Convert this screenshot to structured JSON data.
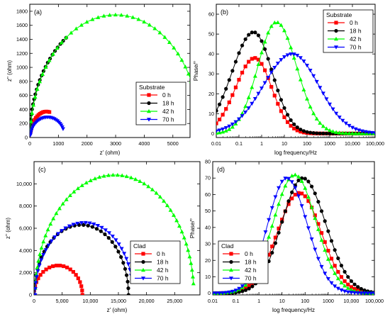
{
  "chart_data": [
    {
      "id": "a",
      "type": "scatter",
      "panel_label": "(a)",
      "xlabel": "z' (ohm)",
      "ylabel": "z'' (ohm)",
      "xscale": "linear",
      "xlim": [
        0,
        5600
      ],
      "ylim": [
        0,
        1900
      ],
      "xticks": [
        0,
        1000,
        2000,
        3000,
        4000,
        5000
      ],
      "xtick_labels": [
        "0",
        "1000",
        "2000",
        "3000",
        "4000",
        "5000"
      ],
      "yticks": [
        0,
        200,
        400,
        600,
        800,
        1000,
        1200,
        1400,
        1600,
        1800
      ],
      "ytick_labels": [
        "0",
        "200",
        "400",
        "600",
        "800",
        "1000",
        "1200",
        "1400",
        "1600",
        "1800"
      ],
      "legend_title": "Substrate",
      "legend_position": "center-right",
      "series": [
        {
          "name": "0 h",
          "color": "#ff0000",
          "marker": "square",
          "shape": "arc",
          "center": 580,
          "rx": 560,
          "ry": 370,
          "t_start": 0.08,
          "t_end": 0.56,
          "count": 16
        },
        {
          "name": "18 h",
          "color": "#000000",
          "marker": "circle",
          "shape": "arc",
          "center": 2900,
          "rx": 2900,
          "ry": 1720,
          "t_start": 0.02,
          "t_end": 0.31,
          "count": 22
        },
        {
          "name": "42 h",
          "color": "#00ff00",
          "marker": "triangle-up",
          "shape": "arc",
          "center": 3000,
          "rx": 2980,
          "ry": 1750,
          "t_start": 0.02,
          "t_end": 0.87,
          "count": 40
        },
        {
          "name": "70 h",
          "color": "#0000ff",
          "marker": "triangle-down",
          "shape": "arc",
          "center": 620,
          "rx": 600,
          "ry": 290,
          "t_start": 0.04,
          "t_end": 0.86,
          "count": 26
        }
      ]
    },
    {
      "id": "b",
      "type": "line",
      "panel_label": "(b)",
      "xlabel": "log frequency/Hz",
      "ylabel": "Phase/°",
      "xscale": "log",
      "xlim": [
        0.01,
        100000
      ],
      "ylim": [
        -2,
        65
      ],
      "xticks": [
        0.01,
        0.1,
        1,
        10,
        100,
        1000,
        10000,
        100000
      ],
      "xtick_labels": [
        "0.01",
        "0.1",
        "1",
        "10",
        "100",
        "1000",
        "10,000",
        "100,000"
      ],
      "yticks": [
        0,
        10,
        20,
        30,
        40,
        50,
        60
      ],
      "ytick_labels": [
        "0",
        "10",
        "20",
        "30",
        "40",
        "50",
        "60"
      ],
      "legend_title": "Substrate",
      "legend_position": "top-right",
      "series": [
        {
          "name": "0 h",
          "color": "#ff0000",
          "marker": "square",
          "shape": "bell",
          "peak": 38,
          "peak_logf": -0.3,
          "width": 1.2,
          "right_width": 1.05,
          "baseline": 0,
          "count": 50
        },
        {
          "name": "18 h",
          "color": "#000000",
          "marker": "circle",
          "shape": "bell",
          "peak": 51,
          "peak_logf": -0.35,
          "width": 1.35,
          "right_width": 1.15,
          "baseline": 0,
          "count": 50
        },
        {
          "name": "42 h",
          "color": "#00ff00",
          "marker": "triangle-up",
          "shape": "bell",
          "peak": 56,
          "peak_logf": 0.65,
          "width": 1.15,
          "right_width": 1.25,
          "baseline": 0,
          "count": 50
        },
        {
          "name": "70 h",
          "color": "#0000ff",
          "marker": "triangle-down",
          "shape": "bell",
          "peak": 40,
          "peak_logf": 1.35,
          "width": 1.8,
          "right_width": 1.65,
          "baseline": 0,
          "count": 50
        }
      ]
    },
    {
      "id": "c",
      "type": "scatter",
      "panel_label": "(c)",
      "xlabel": "z' (ohm)",
      "ylabel": "z'' (ohm)",
      "xscale": "linear",
      "xlim": [
        0,
        29500
      ],
      "ylim": [
        0,
        12000
      ],
      "xticks": [
        0,
        5000,
        10000,
        15000,
        20000,
        25000
      ],
      "xtick_labels": [
        "0",
        "5,000",
        "10,000",
        "15,000",
        "20,000",
        "25,000"
      ],
      "yticks": [
        0,
        2000,
        4000,
        6000,
        8000,
        10000
      ],
      "ytick_labels": [
        "0",
        "2,000",
        "4,000",
        "6,000",
        "8,000",
        "10,000"
      ],
      "legend_title": "Clad",
      "legend_position": "center-right",
      "series": [
        {
          "name": "0 h",
          "color": "#ff0000",
          "marker": "square",
          "shape": "arc",
          "center": 4300,
          "rx": 4300,
          "ry": 2650,
          "t_start": 0.0,
          "t_end": 1.0,
          "count": 22
        },
        {
          "name": "18 h",
          "color": "#000000",
          "marker": "circle",
          "shape": "arc",
          "center": 8400,
          "rx": 8400,
          "ry": 6300,
          "t_start": 0.0,
          "t_end": 1.0,
          "count": 34
        },
        {
          "name": "42 h",
          "color": "#00ff00",
          "marker": "triangle-up",
          "shape": "arc",
          "center": 14300,
          "rx": 14100,
          "ry": 10800,
          "t_start": 0.0,
          "t_end": 0.97,
          "count": 54
        },
        {
          "name": "70 h",
          "color": "#0000ff",
          "marker": "triangle-down",
          "shape": "arc",
          "center": 8900,
          "rx": 8700,
          "ry": 6500,
          "t_start": 0.0,
          "t_end": 0.94,
          "count": 36
        }
      ]
    },
    {
      "id": "d",
      "type": "line",
      "panel_label": "(d)",
      "xlabel": "log frequency/Hz",
      "ylabel": "Phase/°",
      "xscale": "log",
      "xlim": [
        0.01,
        100000
      ],
      "ylim": [
        -1,
        80
      ],
      "xticks": [
        0.01,
        0.1,
        1,
        10,
        100,
        1000,
        10000,
        100000
      ],
      "xtick_labels": [
        "0.01",
        "0.1",
        "1",
        "10",
        "100",
        "1000",
        "10,000",
        "100,000"
      ],
      "yticks": [
        0,
        10,
        20,
        30,
        40,
        50,
        60,
        70,
        80
      ],
      "ytick_labels": [
        "0",
        "10",
        "20",
        "30",
        "40",
        "50",
        "60",
        "70",
        "80"
      ],
      "legend_title": "Clad",
      "legend_position": "bottom-left",
      "series": [
        {
          "name": "0 h",
          "color": "#ff0000",
          "marker": "square",
          "shape": "bell",
          "peak": 61,
          "peak_logf": 1.75,
          "width": 1.35,
          "right_width": 1.35,
          "baseline": 0,
          "count": 50
        },
        {
          "name": "18 h",
          "color": "#000000",
          "marker": "circle",
          "shape": "bell",
          "peak": 70,
          "peak_logf": 1.9,
          "width": 1.3,
          "right_width": 1.4,
          "baseline": 0,
          "count": 50
        },
        {
          "name": "42 h",
          "color": "#00ff00",
          "marker": "triangle-up",
          "shape": "bell",
          "peak": 72,
          "peak_logf": 1.55,
          "width": 1.3,
          "right_width": 1.3,
          "baseline": 0,
          "count": 50
        },
        {
          "name": "70 h",
          "color": "#0000ff",
          "marker": "triangle-down",
          "shape": "bell",
          "peak": 70,
          "peak_logf": 1.2,
          "width": 1.15,
          "right_width": 1.25,
          "baseline": 0,
          "count": 50
        }
      ]
    }
  ]
}
